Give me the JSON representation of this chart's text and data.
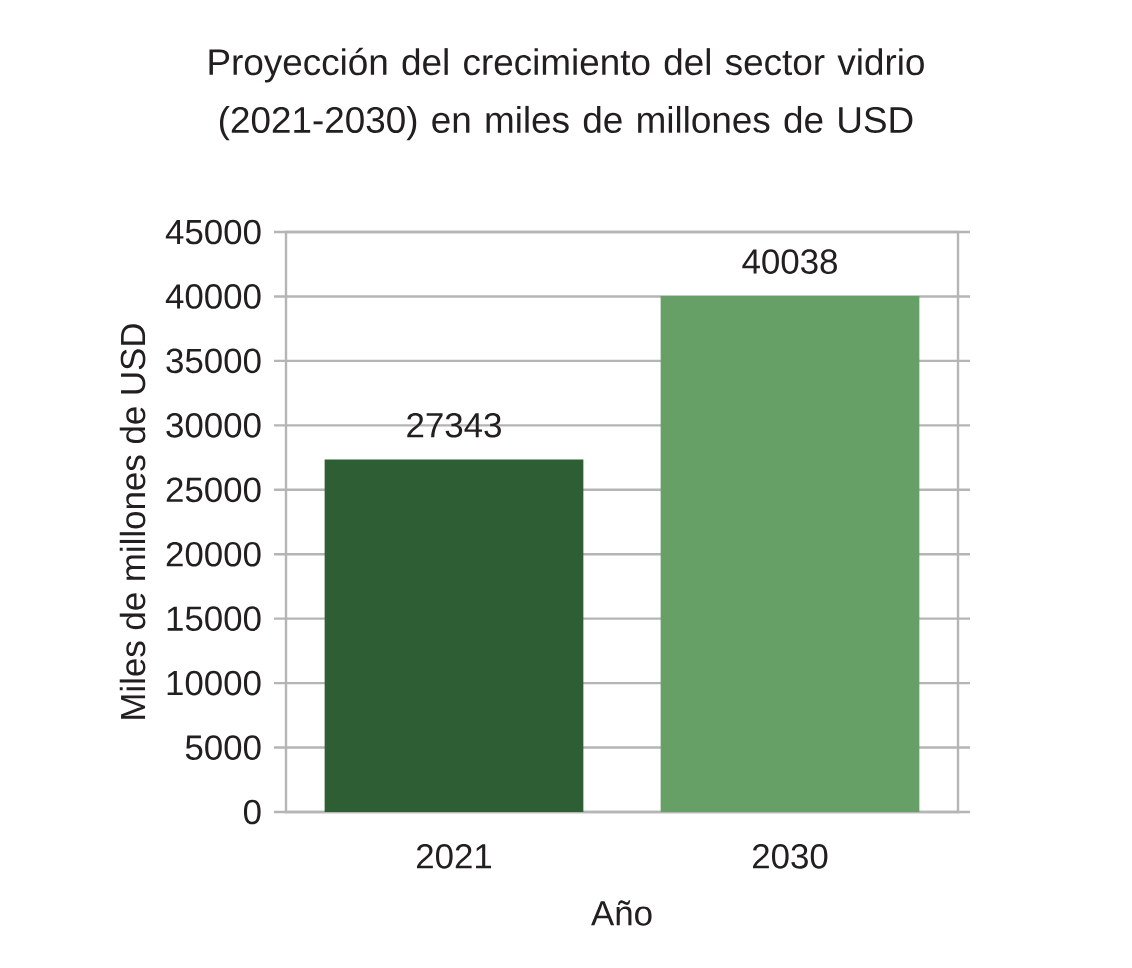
{
  "chart_data": {
    "type": "bar",
    "title": "Proyección del crecimiento del sector vidrio (2021-2030) en miles de millones de USD",
    "xlabel": "Año",
    "ylabel": "Miles de millones de USD",
    "categories": [
      "2021",
      "2030"
    ],
    "values": [
      27343,
      40038
    ],
    "colors": [
      "#2e5e34",
      "#67a067"
    ],
    "ylim": [
      0,
      45000
    ],
    "yticks": [
      0,
      5000,
      10000,
      15000,
      20000,
      25000,
      30000,
      35000,
      40000,
      45000
    ],
    "grid": "y",
    "data_labels": true
  }
}
